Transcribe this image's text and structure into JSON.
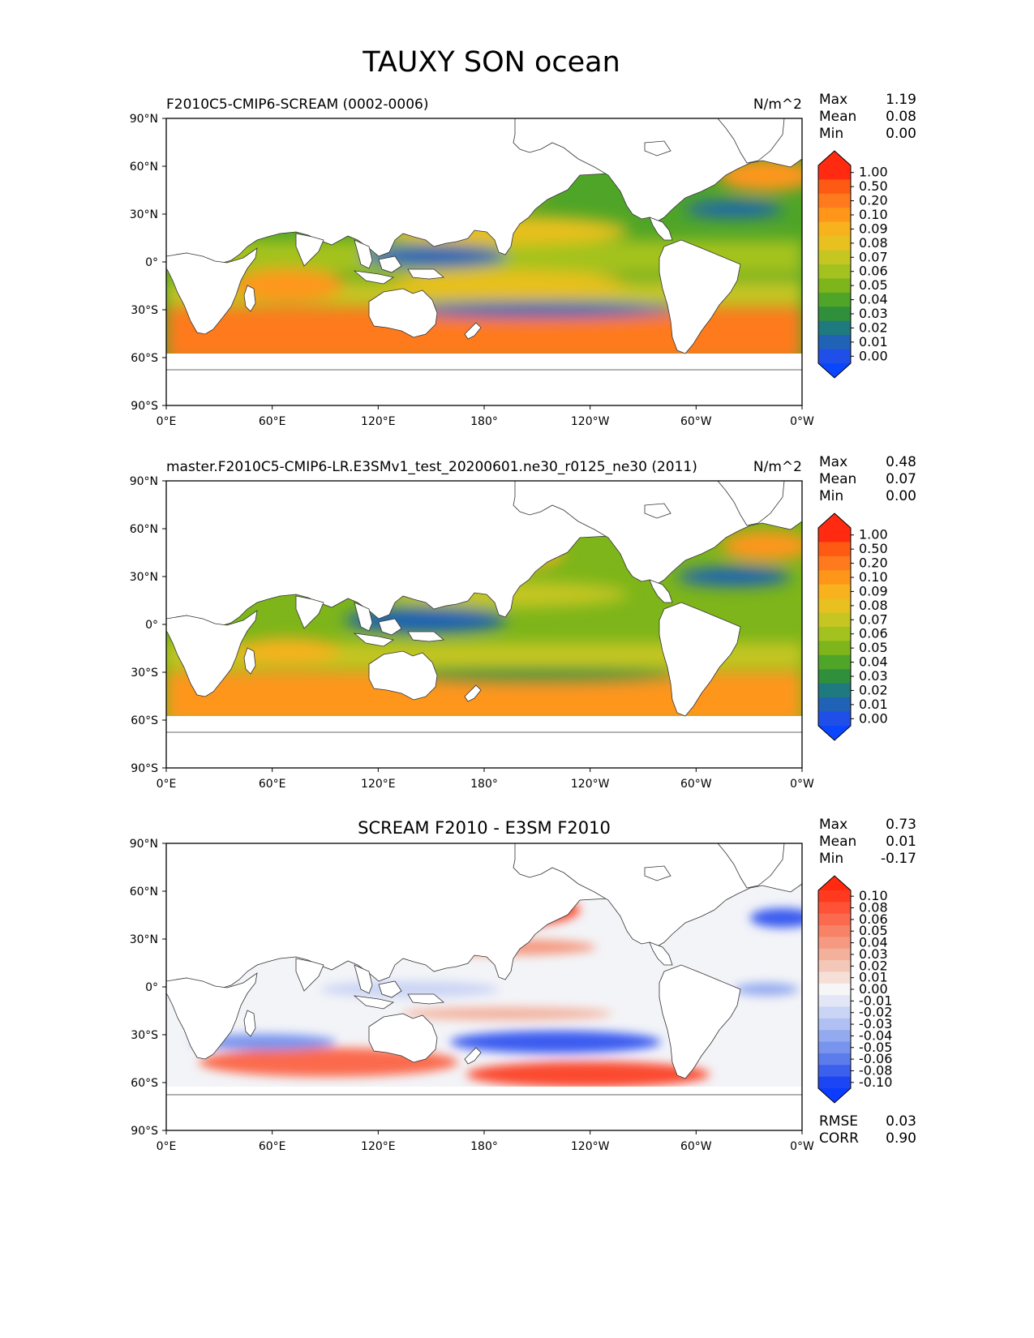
{
  "figure": {
    "title": "TAUXY SON ocean"
  },
  "axes": {
    "lat_labels": [
      "90°N",
      "60°N",
      "30°N",
      "0°",
      "30°S",
      "60°S",
      "90°S"
    ],
    "lon_labels": [
      "0°E",
      "60°E",
      "120°E",
      "180°",
      "120°W",
      "60°W",
      "0°W"
    ]
  },
  "panels": [
    {
      "left_title": "F2010C5-CMIP6-SCREAM (0002-0006)",
      "center_title": "",
      "units": "N/m^2",
      "stats": {
        "max_label": "Max",
        "max": "1.19",
        "mean_label": "Mean",
        "mean": "0.08",
        "min_label": "Min",
        "min": "0.00"
      },
      "colorbar_levels": [
        "1.00",
        "0.50",
        "0.20",
        "0.10",
        "0.09",
        "0.08",
        "0.07",
        "0.06",
        "0.05",
        "0.04",
        "0.03",
        "0.02",
        "0.01",
        "0.00"
      ],
      "colorbar_colors": [
        "#ff2a10",
        "#ff5a14",
        "#ff7a1c",
        "#ff961a",
        "#f7b21e",
        "#e8c01f",
        "#c6c623",
        "#a4c21f",
        "#7db51a",
        "#4fa528",
        "#2f8f3a",
        "#1f7a80",
        "#1f62b6",
        "#1f4fe8"
      ],
      "colorbar_top": "#ff2a10",
      "colorbar_bottom": "#0b46ff"
    },
    {
      "left_title": "master.F2010C5-CMIP6-LR.E3SMv1_test_20200601.ne30_r0125_ne30 (2011)",
      "center_title": "",
      "units": "N/m^2",
      "stats": {
        "max_label": "Max",
        "max": "0.48",
        "mean_label": "Mean",
        "mean": "0.07",
        "min_label": "Min",
        "min": "0.00"
      },
      "colorbar_levels": [
        "1.00",
        "0.50",
        "0.20",
        "0.10",
        "0.09",
        "0.08",
        "0.07",
        "0.06",
        "0.05",
        "0.04",
        "0.03",
        "0.02",
        "0.01",
        "0.00"
      ],
      "colorbar_colors": [
        "#ff2a10",
        "#ff5a14",
        "#ff7a1c",
        "#ff961a",
        "#f7b21e",
        "#e8c01f",
        "#c6c623",
        "#a4c21f",
        "#7db51a",
        "#4fa528",
        "#2f8f3a",
        "#1f7a80",
        "#1f62b6",
        "#1f4fe8"
      ],
      "colorbar_top": "#ff2a10",
      "colorbar_bottom": "#0b46ff"
    },
    {
      "left_title": "",
      "center_title": "SCREAM F2010 - E3SM F2010",
      "units": "",
      "stats": {
        "max_label": "Max",
        "max": "0.73",
        "mean_label": "Mean",
        "mean": "0.01",
        "min_label": "Min",
        "min": "-0.17"
      },
      "colorbar_levels": [
        "0.10",
        "0.08",
        "0.06",
        "0.05",
        "0.04",
        "0.03",
        "0.02",
        "0.01",
        "0.00",
        "-0.01",
        "-0.02",
        "-0.03",
        "-0.04",
        "-0.05",
        "-0.06",
        "-0.08",
        "-0.10"
      ],
      "colorbar_colors": [
        "#ff3a1e",
        "#ff5236",
        "#fb6a4e",
        "#f88266",
        "#f59a80",
        "#f3b19c",
        "#f4c8b8",
        "#f6dfd6",
        "#f6f6f6",
        "#e2e6f6",
        "#cad4f4",
        "#b0c0f2",
        "#94aaf0",
        "#7894ee",
        "#5c7cec",
        "#3c60ee",
        "#1c46f4"
      ],
      "colorbar_top": "#ff2a10",
      "colorbar_bottom": "#0b3cff",
      "error_stats": {
        "rmse_label": "RMSE",
        "rmse": "0.03",
        "corr_label": "CORR",
        "corr": "0.90"
      }
    }
  ],
  "colors": {
    "ocean_blue": "#1f62b6",
    "ocean_green": "#4fa528",
    "ocean_yellow": "#c6c623",
    "ocean_orange": "#ff961a",
    "southern_orange": "#ff7a1c",
    "diff_red": "#fb4a2e",
    "diff_blue": "#3a5cf0",
    "diff_white": "#f3f4f8"
  }
}
